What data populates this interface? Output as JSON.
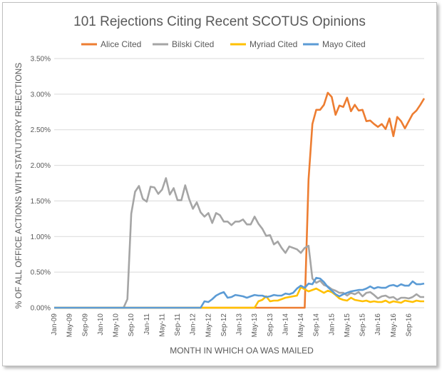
{
  "chart_data": {
    "type": "line",
    "title": "101 Rejections Citing Recent SCOTUS Opinions",
    "xlabel": "MONTH IN WHICH OA WAS MAILED",
    "ylabel": "% OF ALL OFFICE ACTIONS WITH STATUTORY REJECTIONS",
    "ylim": [
      0,
      0.035
    ],
    "yticks": [
      0,
      0.005,
      0.01,
      0.015,
      0.02,
      0.025,
      0.03,
      0.035
    ],
    "ytick_labels": [
      "0.00%",
      "0.50%",
      "1.00%",
      "1.50%",
      "2.00%",
      "2.50%",
      "3.00%",
      "3.50%"
    ],
    "x_start": "Jan-09",
    "x_months": 96,
    "xtick_step": 4,
    "xtick_labels": [
      "Jan-09",
      "May-09",
      "Sep-09",
      "Jan-10",
      "May-10",
      "Sep-10",
      "Jan-11",
      "May-11",
      "Sep-11",
      "Jan-12",
      "May-12",
      "Sep-12",
      "Jan-13",
      "May-13",
      "Sep-13",
      "Jan-14",
      "May-14",
      "Sep-14",
      "Jan-15",
      "May-15",
      "Sep-15",
      "Jan-16",
      "May-16",
      "Sep-16"
    ],
    "gridlines": true,
    "legend_position": "top",
    "series": [
      {
        "name": "Alice Cited",
        "color": "#ED7D31",
        "points": [
          [
            0,
            0
          ],
          [
            65,
            0
          ],
          [
            66,
            0.018
          ],
          [
            67,
            0.0258
          ],
          [
            68,
            0.0278
          ],
          [
            69,
            0.0278
          ],
          [
            70,
            0.0285
          ],
          [
            71,
            0.0302
          ],
          [
            72,
            0.0296
          ],
          [
            73,
            0.0271
          ],
          [
            74,
            0.0284
          ],
          [
            75,
            0.0282
          ],
          [
            76,
            0.0295
          ],
          [
            77,
            0.0276
          ],
          [
            78,
            0.0285
          ],
          [
            79,
            0.0277
          ],
          [
            80,
            0.0278
          ],
          [
            81,
            0.0262
          ],
          [
            82,
            0.0263
          ],
          [
            83,
            0.0258
          ],
          [
            84,
            0.0254
          ],
          [
            85,
            0.0258
          ],
          [
            86,
            0.0251
          ],
          [
            87,
            0.0266
          ],
          [
            88,
            0.0241
          ],
          [
            89,
            0.0268
          ],
          [
            90,
            0.0262
          ],
          [
            91,
            0.0252
          ],
          [
            92,
            0.0262
          ],
          [
            93,
            0.0272
          ],
          [
            94,
            0.0277
          ],
          [
            95,
            0.0285
          ],
          [
            96,
            0.0294
          ]
        ]
      },
      {
        "name": "Bilski Cited",
        "color": "#A5A5A5",
        "points": [
          [
            0,
            0
          ],
          [
            18,
            0
          ],
          [
            19,
            0.0012
          ],
          [
            20,
            0.0132
          ],
          [
            21,
            0.0163
          ],
          [
            22,
            0.0171
          ],
          [
            23,
            0.0153
          ],
          [
            24,
            0.0149
          ],
          [
            25,
            0.017
          ],
          [
            26,
            0.0169
          ],
          [
            27,
            0.016
          ],
          [
            28,
            0.0166
          ],
          [
            29,
            0.0182
          ],
          [
            30,
            0.0159
          ],
          [
            31,
            0.0168
          ],
          [
            32,
            0.0151
          ],
          [
            33,
            0.0151
          ],
          [
            34,
            0.0172
          ],
          [
            35,
            0.0153
          ],
          [
            36,
            0.0139
          ],
          [
            37,
            0.0148
          ],
          [
            38,
            0.0134
          ],
          [
            39,
            0.0128
          ],
          [
            40,
            0.0133
          ],
          [
            41,
            0.0119
          ],
          [
            42,
            0.0133
          ],
          [
            43,
            0.013
          ],
          [
            44,
            0.0121
          ],
          [
            45,
            0.0121
          ],
          [
            46,
            0.0116
          ],
          [
            47,
            0.0121
          ],
          [
            48,
            0.0121
          ],
          [
            49,
            0.0124
          ],
          [
            50,
            0.0117
          ],
          [
            51,
            0.0117
          ],
          [
            52,
            0.0128
          ],
          [
            53,
            0.0118
          ],
          [
            54,
            0.0111
          ],
          [
            55,
            0.0101
          ],
          [
            56,
            0.0102
          ],
          [
            57,
            0.0089
          ],
          [
            58,
            0.0093
          ],
          [
            59,
            0.0084
          ],
          [
            60,
            0.0077
          ],
          [
            61,
            0.0086
          ],
          [
            62,
            0.0084
          ],
          [
            63,
            0.0082
          ],
          [
            64,
            0.0077
          ],
          [
            65,
            0.0084
          ],
          [
            66,
            0.0087
          ],
          [
            67,
            0.0041
          ],
          [
            68,
            0.0035
          ],
          [
            69,
            0.0038
          ],
          [
            70,
            0.0032
          ],
          [
            71,
            0.003
          ],
          [
            72,
            0.0026
          ],
          [
            73,
            0.0024
          ],
          [
            74,
            0.0021
          ],
          [
            75,
            0.0021
          ],
          [
            76,
            0.0017
          ],
          [
            77,
            0.0021
          ],
          [
            78,
            0.0019
          ],
          [
            79,
            0.0022
          ],
          [
            80,
            0.0016
          ],
          [
            81,
            0.0021
          ],
          [
            82,
            0.0022
          ],
          [
            83,
            0.0018
          ],
          [
            84,
            0.0013
          ],
          [
            85,
            0.0016
          ],
          [
            86,
            0.0017
          ],
          [
            87,
            0.0014
          ],
          [
            88,
            0.0015
          ],
          [
            89,
            0.0011
          ],
          [
            90,
            0.0014
          ],
          [
            91,
            0.0014
          ],
          [
            92,
            0.0013
          ],
          [
            93,
            0.0015
          ],
          [
            94,
            0.0019
          ],
          [
            95,
            0.0015
          ],
          [
            96,
            0.0015
          ]
        ]
      },
      {
        "name": "Myriad Cited",
        "color": "#FFC000",
        "points": [
          [
            0,
            0
          ],
          [
            52,
            0
          ],
          [
            53,
            0.0009
          ],
          [
            54,
            0.0011
          ],
          [
            55,
            0.0016
          ],
          [
            56,
            0.0009
          ],
          [
            57,
            0.001
          ],
          [
            58,
            0.001
          ],
          [
            59,
            0.0012
          ],
          [
            60,
            0.0014
          ],
          [
            61,
            0.0015
          ],
          [
            62,
            0.0016
          ],
          [
            63,
            0.0017
          ],
          [
            64,
            0.0029
          ],
          [
            65,
            0.0026
          ],
          [
            66,
            0.0023
          ],
          [
            67,
            0.0025
          ],
          [
            68,
            0.0027
          ],
          [
            69,
            0.0024
          ],
          [
            70,
            0.0021
          ],
          [
            71,
            0.0024
          ],
          [
            72,
            0.0022
          ],
          [
            73,
            0.0018
          ],
          [
            74,
            0.0013
          ],
          [
            75,
            0.0011
          ],
          [
            76,
            0.001
          ],
          [
            77,
            0.0014
          ],
          [
            78,
            0.0011
          ],
          [
            79,
            0.001
          ],
          [
            80,
            0.0009
          ],
          [
            81,
            0.001
          ],
          [
            82,
            0.0008
          ],
          [
            83,
            0.0009
          ],
          [
            84,
            0.0008
          ],
          [
            85,
            0.0008
          ],
          [
            86,
            0.001
          ],
          [
            87,
            0.0007
          ],
          [
            88,
            0.0009
          ],
          [
            89,
            0.0008
          ],
          [
            90,
            0.0007
          ],
          [
            91,
            0.001
          ],
          [
            92,
            0.0009
          ],
          [
            93,
            0.0008
          ],
          [
            94,
            0.001
          ],
          [
            95,
            0.0009
          ],
          [
            96,
            0.0009
          ]
        ]
      },
      {
        "name": "Mayo Cited",
        "color": "#5B9BD5",
        "points": [
          [
            0,
            0
          ],
          [
            38,
            0
          ],
          [
            39,
            0.0009
          ],
          [
            40,
            0.0008
          ],
          [
            41,
            0.0012
          ],
          [
            42,
            0.0017
          ],
          [
            43,
            0.002
          ],
          [
            44,
            0.0022
          ],
          [
            45,
            0.0014
          ],
          [
            46,
            0.0015
          ],
          [
            47,
            0.0018
          ],
          [
            48,
            0.0017
          ],
          [
            49,
            0.0016
          ],
          [
            50,
            0.0014
          ],
          [
            51,
            0.0016
          ],
          [
            52,
            0.0018
          ],
          [
            53,
            0.0017
          ],
          [
            54,
            0.0017
          ],
          [
            55,
            0.0015
          ],
          [
            56,
            0.0016
          ],
          [
            57,
            0.0018
          ],
          [
            58,
            0.0017
          ],
          [
            59,
            0.0017
          ],
          [
            60,
            0.002
          ],
          [
            61,
            0.0019
          ],
          [
            62,
            0.0021
          ],
          [
            63,
            0.0027
          ],
          [
            64,
            0.0031
          ],
          [
            65,
            0.0028
          ],
          [
            66,
            0.0034
          ],
          [
            67,
            0.0033
          ],
          [
            68,
            0.0042
          ],
          [
            69,
            0.0041
          ],
          [
            70,
            0.0036
          ],
          [
            71,
            0.0029
          ],
          [
            72,
            0.0024
          ],
          [
            73,
            0.0019
          ],
          [
            74,
            0.0016
          ],
          [
            75,
            0.0019
          ],
          [
            76,
            0.0021
          ],
          [
            77,
            0.0023
          ],
          [
            78,
            0.0024
          ],
          [
            79,
            0.0025
          ],
          [
            80,
            0.0025
          ],
          [
            81,
            0.0027
          ],
          [
            82,
            0.003
          ],
          [
            83,
            0.0027
          ],
          [
            84,
            0.0029
          ],
          [
            85,
            0.0028
          ],
          [
            86,
            0.0028
          ],
          [
            87,
            0.0031
          ],
          [
            88,
            0.0032
          ],
          [
            89,
            0.003
          ],
          [
            90,
            0.0033
          ],
          [
            91,
            0.0031
          ],
          [
            92,
            0.0031
          ],
          [
            93,
            0.0037
          ],
          [
            94,
            0.0033
          ],
          [
            95,
            0.0033
          ],
          [
            96,
            0.0034
          ]
        ]
      }
    ]
  }
}
